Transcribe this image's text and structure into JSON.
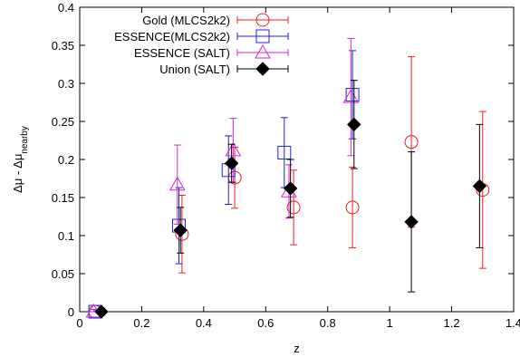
{
  "chart_data": {
    "type": "scatter",
    "title": "",
    "xlabel": "z",
    "ylabel": "Δμ - Δμ",
    "ylabel_sub": "nearby",
    "xlim": [
      0,
      1.4
    ],
    "ylim": [
      0,
      0.4
    ],
    "xticks": [
      0,
      0.2,
      0.4,
      0.6,
      0.8,
      1,
      1.2,
      1.4
    ],
    "xtick_labels": [
      "0",
      "0.2",
      "0.4",
      "0.6",
      "0.8",
      "1",
      "1.2",
      "1.4"
    ],
    "yticks": [
      0,
      0.05,
      0.1,
      0.15,
      0.2,
      0.25,
      0.3,
      0.35,
      0.4
    ],
    "ytick_labels": [
      "0",
      "0.05",
      "0.1",
      "0.15",
      "0.2",
      "0.25",
      "0.3",
      "0.35",
      "0.4"
    ],
    "grid": false,
    "legend_position": "top-left",
    "series": [
      {
        "name": "Gold (MLCS2k2)",
        "marker": "circle",
        "color": "#e8231f",
        "points": [
          {
            "x": 0.05,
            "y": 0.0,
            "err": 0.003
          },
          {
            "x": 0.33,
            "y": 0.102,
            "err": 0.051
          },
          {
            "x": 0.5,
            "y": 0.176,
            "err": 0.04
          },
          {
            "x": 0.69,
            "y": 0.137,
            "err": 0.049
          },
          {
            "x": 0.88,
            "y": 0.137,
            "err": 0.053
          },
          {
            "x": 1.07,
            "y": 0.223,
            "err": 0.112
          },
          {
            "x": 1.3,
            "y": 0.16,
            "err": 0.103
          }
        ]
      },
      {
        "name": "ESSENCE(MLCS2k2)",
        "marker": "square",
        "color": "#1c1fe0",
        "points": [
          {
            "x": 0.05,
            "y": 0.0,
            "err": 0.003
          },
          {
            "x": 0.32,
            "y": 0.113,
            "err": 0.05
          },
          {
            "x": 0.48,
            "y": 0.186,
            "err": 0.045
          },
          {
            "x": 0.66,
            "y": 0.209,
            "err": 0.046
          },
          {
            "x": 0.88,
            "y": 0.285,
            "err": 0.058
          }
        ]
      },
      {
        "name": "ESSENCE (SALT)",
        "marker": "triangle",
        "color": "#d824d8",
        "points": [
          {
            "x": 0.045,
            "y": 0.0,
            "err": 0.003
          },
          {
            "x": 0.315,
            "y": 0.167,
            "err": 0.052
          },
          {
            "x": 0.495,
            "y": 0.212,
            "err": 0.042
          },
          {
            "x": 0.675,
            "y": 0.158,
            "err": 0.035
          },
          {
            "x": 0.875,
            "y": 0.282,
            "err": 0.077
          }
        ]
      },
      {
        "name": "Union (SALT)",
        "marker": "diamond",
        "color": "#000000",
        "points": [
          {
            "x": 0.07,
            "y": 0.0,
            "err": 0.003
          },
          {
            "x": 0.325,
            "y": 0.107,
            "err": 0.03
          },
          {
            "x": 0.49,
            "y": 0.195,
            "err": 0.025
          },
          {
            "x": 0.68,
            "y": 0.162,
            "err": 0.038
          },
          {
            "x": 0.885,
            "y": 0.246,
            "err": 0.058
          },
          {
            "x": 1.07,
            "y": 0.118,
            "err": 0.092
          },
          {
            "x": 1.29,
            "y": 0.165,
            "err": 0.081
          }
        ]
      }
    ]
  }
}
